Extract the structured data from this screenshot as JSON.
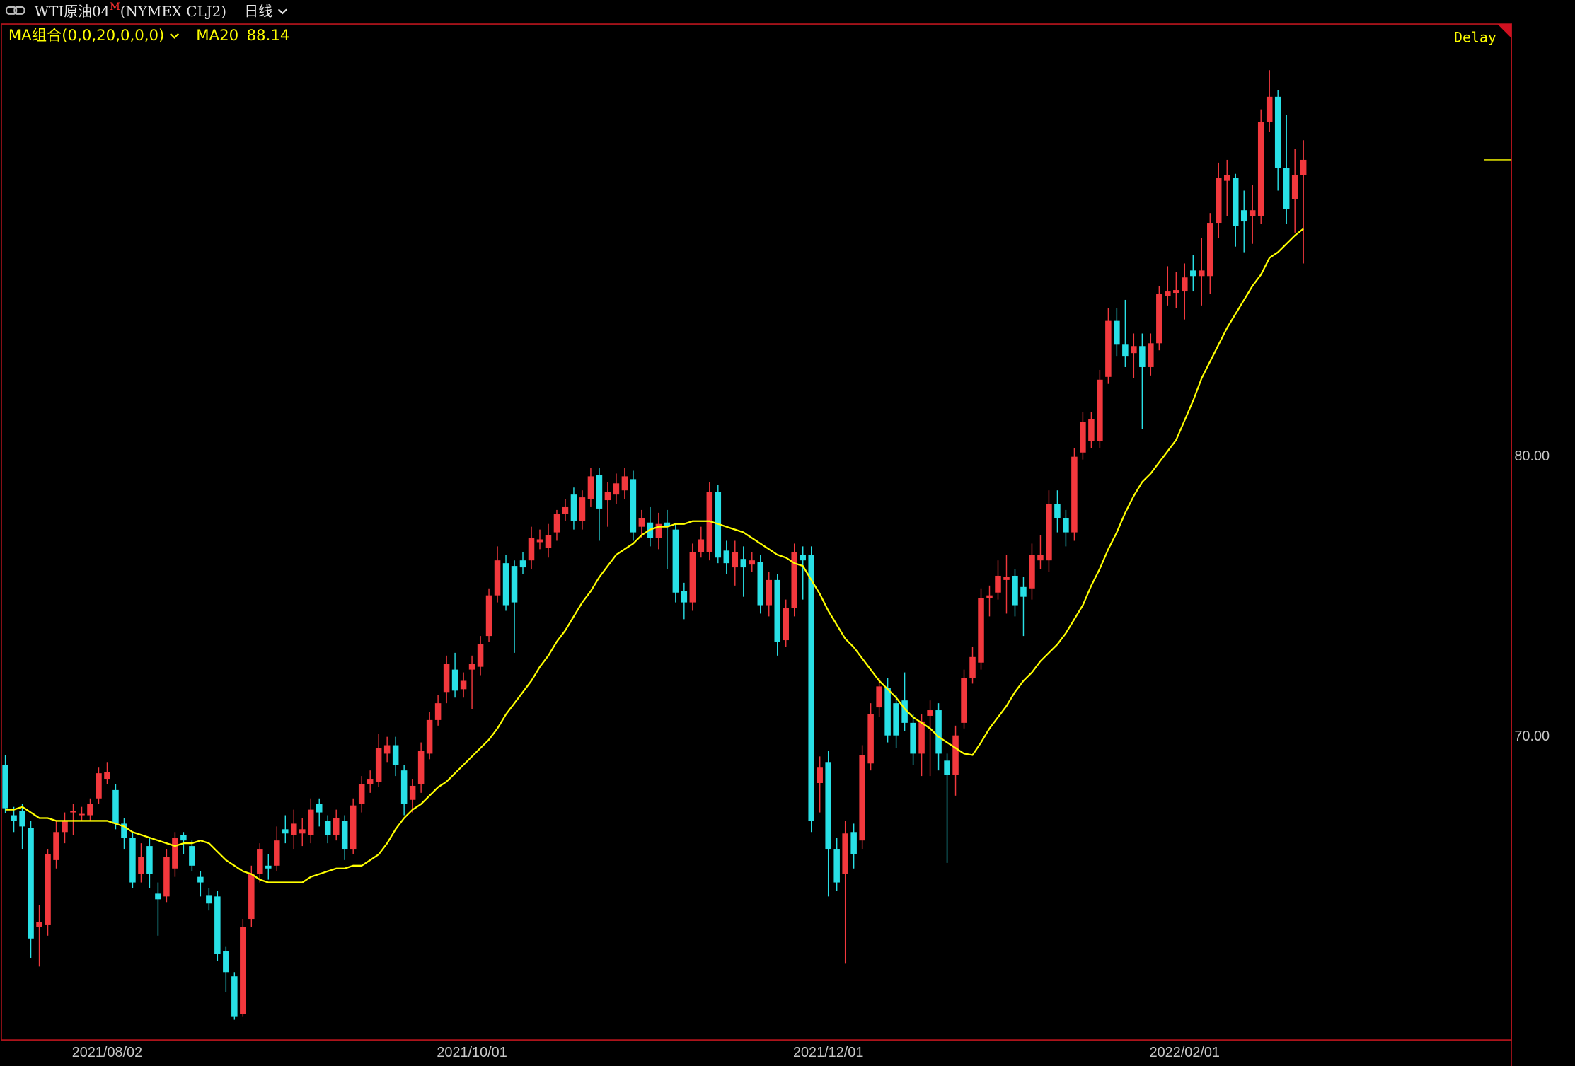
{
  "header": {
    "symbol": "WTI原油04",
    "badge": "M",
    "exchange": "(NYMEX CLJ2)",
    "period": "日线",
    "indicator": "MA组合(0,0,20,0,0,0)",
    "status": "Delay"
  },
  "chart_data": {
    "type": "candlestick",
    "categories": [
      null,
      null,
      null,
      null,
      null,
      null,
      null,
      null,
      null,
      null,
      null,
      null,
      "2021/08/02",
      null,
      null,
      null,
      null,
      null,
      null,
      null,
      null,
      null,
      null,
      null,
      null,
      null,
      null,
      null,
      null,
      null,
      null,
      null,
      null,
      null,
      null,
      null,
      null,
      null,
      null,
      null,
      null,
      null,
      null,
      null,
      null,
      null,
      null,
      null,
      null,
      null,
      null,
      null,
      null,
      null,
      null,
      "2021/10/01",
      null,
      null,
      null,
      null,
      null,
      null,
      null,
      null,
      null,
      null,
      null,
      null,
      null,
      null,
      null,
      null,
      null,
      null,
      null,
      null,
      null,
      null,
      null,
      null,
      null,
      null,
      null,
      null,
      null,
      null,
      null,
      null,
      null,
      null,
      null,
      null,
      null,
      null,
      null,
      null,
      null,
      "2021/12/01",
      null,
      null,
      null,
      null,
      null,
      null,
      null,
      null,
      null,
      null,
      null,
      null,
      null,
      null,
      null,
      null,
      null,
      null,
      null,
      null,
      null,
      null,
      null,
      null,
      null,
      null,
      null,
      null,
      null,
      null,
      null,
      null,
      null,
      null,
      null,
      null,
      null,
      null,
      null,
      null,
      null,
      "2022/02/01",
      null,
      null,
      null,
      null,
      null,
      null,
      null,
      null,
      null,
      null,
      null,
      null,
      null,
      null
    ],
    "open": [
      69.0,
      67.2,
      67.35,
      66.74,
      63.2,
      63.3,
      65.6,
      66.6,
      67.3,
      67.2,
      67.2,
      67.8,
      68.5,
      68.1,
      66.9,
      66.4,
      65.1,
      66.1,
      64.4,
      64.3,
      65.3,
      66.5,
      66.1,
      65.0,
      64.35,
      64.3,
      62.35,
      61.45,
      60.1,
      63.5,
      65.1,
      65.4,
      65.4,
      66.7,
      66.5,
      66.55,
      66.5,
      67.6,
      67.0,
      66.5,
      67.0,
      66.0,
      67.6,
      68.3,
      68.4,
      69.4,
      69.7,
      68.8,
      67.75,
      68.3,
      69.4,
      70.6,
      71.6,
      72.4,
      71.7,
      72.4,
      72.5,
      73.6,
      75.05,
      76.2,
      76.1,
      76.3,
      76.3,
      76.95,
      76.75,
      77.3,
      77.95,
      78.65,
      77.7,
      78.5,
      79.35,
      78.45,
      78.65,
      78.8,
      79.2,
      77.5,
      77.65,
      77.1,
      77.65,
      77.4,
      75.2,
      74.8,
      76.6,
      76.6,
      78.75,
      76.65,
      76.05,
      76.35,
      76.15,
      76.25,
      74.7,
      75.6,
      73.45,
      74.6,
      76.5,
      76.5,
      68.35,
      69.1,
      66.0,
      65.1,
      66.6,
      66.3,
      69.05,
      71.05,
      71.75,
      71.2,
      71.3,
      70.5,
      69.4,
      70.75,
      70.95,
      69.15,
      68.65,
      70.5,
      72.1,
      72.65,
      74.95,
      75.15,
      75.6,
      75.75,
      75.35,
      75.3,
      76.3,
      76.3,
      78.3,
      77.8,
      77.3,
      80.15,
      80.55,
      80.55,
      82.85,
      84.85,
      84.0,
      83.7,
      83.95,
      83.2,
      84.05,
      85.75,
      85.85,
      85.9,
      86.65,
      86.45,
      86.45,
      88.35,
      89.85,
      89.95,
      88.8,
      88.6,
      88.6,
      91.95,
      92.85,
      90.3,
      89.2,
      90.05
    ],
    "high": [
      69.35,
      67.5,
      67.6,
      67.0,
      64.0,
      66.0,
      67.0,
      67.3,
      67.6,
      67.5,
      67.8,
      68.9,
      69.1,
      68.3,
      67.1,
      66.6,
      66.2,
      66.4,
      64.8,
      66.0,
      66.6,
      66.6,
      66.3,
      65.2,
      64.6,
      64.5,
      62.5,
      61.6,
      63.5,
      65.4,
      66.2,
      65.8,
      66.8,
      67.2,
      67.4,
      67.1,
      67.8,
      67.8,
      67.2,
      67.4,
      67.2,
      67.8,
      68.6,
      68.8,
      70.1,
      70.0,
      70.0,
      69.0,
      68.5,
      69.8,
      70.9,
      71.5,
      72.9,
      73.0,
      72.3,
      72.9,
      73.6,
      75.3,
      76.8,
      76.5,
      76.3,
      76.6,
      77.5,
      77.4,
      77.6,
      78.1,
      78.5,
      78.9,
      78.8,
      79.6,
      79.6,
      79.1,
      79.4,
      79.6,
      79.5,
      78.1,
      78.2,
      78.0,
      78.1,
      77.6,
      75.5,
      76.9,
      77.5,
      79.1,
      79.0,
      77.0,
      77.0,
      76.8,
      76.6,
      76.5,
      75.9,
      75.8,
      74.9,
      76.9,
      76.8,
      76.8,
      69.3,
      69.5,
      66.4,
      67.0,
      66.9,
      69.7,
      71.2,
      72.1,
      72.1,
      71.5,
      72.3,
      70.8,
      70.8,
      71.3,
      71.2,
      69.4,
      70.4,
      72.4,
      73.2,
      75.3,
      75.4,
      76.3,
      76.5,
      76.0,
      75.7,
      76.9,
      77.2,
      78.8,
      78.8,
      78.1,
      80.3,
      81.6,
      81.6,
      83.1,
      85.3,
      85.3,
      85.6,
      84.4,
      84.4,
      84.4,
      86.1,
      86.8,
      86.6,
      86.9,
      87.2,
      87.8,
      88.7,
      90.5,
      90.6,
      90.1,
      89.5,
      89.7,
      92.4,
      93.8,
      93.1,
      92.2,
      91.0,
      91.3
    ],
    "low": [
      67.27,
      66.6,
      66.0,
      62.1,
      61.8,
      62.9,
      65.3,
      66.2,
      66.5,
      67.0,
      67.0,
      67.6,
      68.3,
      66.7,
      66.0,
      64.6,
      64.8,
      64.6,
      62.9,
      64.1,
      65.0,
      65.8,
      65.2,
      64.3,
      63.8,
      62.0,
      60.9,
      59.9,
      60.0,
      63.2,
      64.8,
      64.9,
      65.2,
      66.2,
      66.0,
      66.1,
      66.2,
      66.8,
      66.2,
      66.3,
      65.6,
      65.8,
      67.3,
      68.0,
      68.2,
      69.1,
      68.6,
      67.2,
      67.3,
      68.0,
      69.2,
      70.4,
      71.2,
      71.4,
      71.4,
      71.0,
      72.2,
      73.4,
      74.8,
      74.5,
      73.0,
      75.8,
      76.0,
      76.7,
      76.4,
      77.0,
      77.7,
      77.4,
      77.4,
      78.2,
      77.0,
      77.5,
      78.3,
      78.5,
      77.0,
      77.1,
      76.8,
      76.7,
      76.0,
      74.8,
      74.2,
      74.5,
      76.4,
      76.3,
      76.2,
      75.8,
      75.4,
      75.0,
      75.9,
      74.4,
      74.3,
      72.9,
      73.2,
      74.3,
      74.9,
      66.6,
      67.3,
      64.3,
      64.5,
      61.9,
      65.3,
      66.0,
      68.8,
      70.7,
      69.8,
      69.6,
      70.2,
      69.0,
      68.6,
      68.6,
      68.8,
      65.5,
      67.9,
      70.3,
      71.9,
      72.4,
      74.3,
      74.9,
      74.4,
      74.3,
      73.6,
      74.9,
      76.0,
      75.9,
      77.3,
      76.8,
      77.0,
      79.9,
      80.3,
      80.3,
      82.6,
      83.6,
      83.2,
      82.8,
      81.0,
      82.9,
      83.8,
      85.4,
      85.3,
      84.9,
      85.9,
      85.4,
      85.8,
      87.8,
      88.6,
      87.5,
      87.3,
      87.6,
      88.3,
      91.6,
      89.5,
      88.3,
      88.0,
      86.9
    ],
    "close": [
      67.45,
      67.0,
      66.8,
      62.8,
      63.4,
      65.8,
      66.6,
      67.0,
      67.35,
      67.25,
      67.6,
      68.7,
      68.75,
      66.9,
      66.4,
      64.8,
      65.7,
      65.1,
      64.2,
      65.7,
      66.4,
      66.3,
      65.4,
      64.8,
      64.05,
      62.25,
      61.6,
      60.0,
      63.2,
      65.1,
      66.0,
      65.3,
      66.3,
      66.55,
      66.9,
      66.7,
      67.4,
      67.3,
      66.5,
      67.1,
      66.0,
      67.55,
      68.3,
      68.5,
      69.6,
      69.7,
      69.0,
      67.6,
      68.25,
      69.5,
      70.6,
      71.2,
      72.6,
      71.65,
      72.0,
      72.6,
      73.3,
      75.05,
      76.3,
      74.7,
      74.8,
      76.05,
      77.1,
      77.05,
      77.2,
      77.95,
      78.2,
      77.7,
      78.55,
      79.3,
      78.15,
      78.75,
      79.05,
      79.3,
      77.3,
      77.8,
      77.1,
      77.6,
      77.5,
      75.15,
      74.8,
      76.6,
      77.05,
      78.75,
      76.4,
      76.2,
      76.6,
      76.05,
      76.3,
      74.7,
      75.6,
      73.4,
      74.6,
      76.6,
      76.3,
      67.0,
      68.9,
      66.0,
      64.8,
      66.55,
      65.8,
      69.35,
      70.8,
      71.8,
      70.05,
      70.05,
      70.5,
      69.4,
      70.55,
      70.95,
      69.4,
      68.65,
      70.05,
      72.1,
      72.85,
      74.95,
      75.05,
      75.75,
      75.7,
      74.7,
      75.0,
      76.5,
      76.5,
      78.3,
      77.8,
      77.3,
      80.0,
      81.25,
      81.35,
      82.75,
      84.85,
      84.0,
      83.6,
      83.95,
      83.2,
      84.05,
      85.8,
      85.9,
      85.95,
      86.4,
      86.45,
      86.65,
      88.35,
      89.95,
      90.05,
      88.25,
      88.4,
      88.8,
      91.95,
      92.85,
      90.3,
      88.85,
      90.05,
      90.6
    ],
    "up_color": "#f2383d",
    "down_color": "#28e0e6",
    "overlays": [
      {
        "name": "MA20",
        "color": "#ffff00",
        "values": [
          67.4,
          67.4,
          67.5,
          67.3,
          67.1,
          67.1,
          67.0,
          67.0,
          67.0,
          67.0,
          67.0,
          67.0,
          67.0,
          66.9,
          66.8,
          66.6,
          66.5,
          66.4,
          66.3,
          66.2,
          66.1,
          66.2,
          66.2,
          66.3,
          66.2,
          65.9,
          65.6,
          65.4,
          65.2,
          65.1,
          64.9,
          64.8,
          64.8,
          64.8,
          64.8,
          64.8,
          65.0,
          65.1,
          65.2,
          65.3,
          65.3,
          65.4,
          65.4,
          65.6,
          65.8,
          66.2,
          66.7,
          67.1,
          67.4,
          67.6,
          67.9,
          68.2,
          68.4,
          68.7,
          69.0,
          69.3,
          69.6,
          69.9,
          70.3,
          70.8,
          71.2,
          71.6,
          72.0,
          72.5,
          72.9,
          73.4,
          73.8,
          74.3,
          74.8,
          75.2,
          75.7,
          76.1,
          76.5,
          76.7,
          76.9,
          77.2,
          77.4,
          77.5,
          77.5,
          77.6,
          77.6,
          77.7,
          77.7,
          77.7,
          77.6,
          77.5,
          77.4,
          77.3,
          77.1,
          76.9,
          76.7,
          76.5,
          76.4,
          76.2,
          76.1,
          75.6,
          75.1,
          74.5,
          74.0,
          73.5,
          73.2,
          72.8,
          72.4,
          72.0,
          71.7,
          71.4,
          71.0,
          70.7,
          70.5,
          70.3,
          70.0,
          69.8,
          69.6,
          69.4,
          69.35,
          69.8,
          70.3,
          70.7,
          71.1,
          71.6,
          72.0,
          72.3,
          72.7,
          73.0,
          73.3,
          73.7,
          74.2,
          74.7,
          75.4,
          76.0,
          76.7,
          77.3,
          78.0,
          78.6,
          79.1,
          79.4,
          79.8,
          80.2,
          80.6,
          81.3,
          82.0,
          82.8,
          83.4,
          84.0,
          84.6,
          85.1,
          85.6,
          86.1,
          86.5,
          87.1,
          87.3,
          87.6,
          87.9,
          88.14
        ]
      }
    ],
    "ylim": [
      59.18,
      95.41
    ],
    "yticks": [
      {
        "value": 70,
        "label": "70.00"
      },
      {
        "value": 80,
        "label": "80.00"
      }
    ]
  }
}
